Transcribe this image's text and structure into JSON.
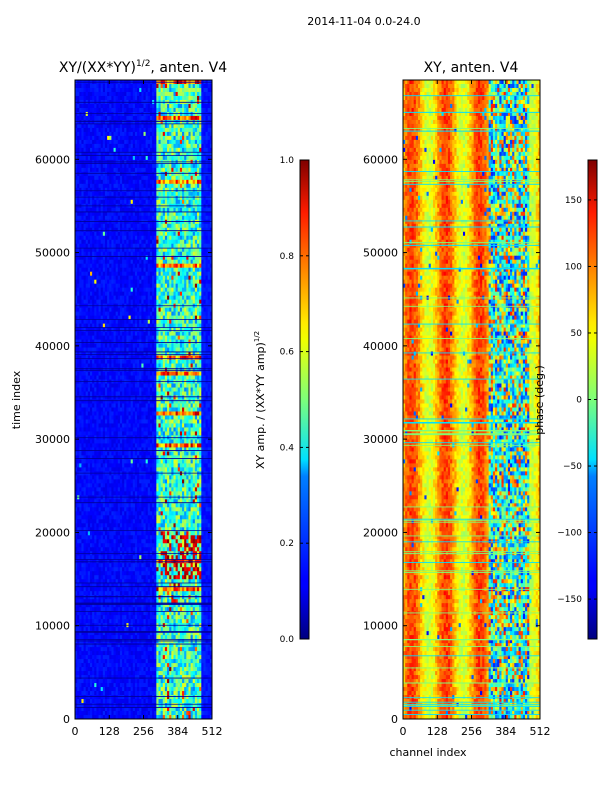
{
  "suptitle": "2014-11-04 0.0-24.0",
  "chart_data": [
    {
      "type": "heatmap",
      "title": "XY/(XX*YY)",
      "title_superscript": "1/2",
      "title_suffix": ", anten. V4",
      "xlabel": "",
      "ylabel": "time index",
      "xlim": [
        0,
        512
      ],
      "ylim": [
        0,
        68500
      ],
      "xticks": [
        0,
        128,
        256,
        384,
        512
      ],
      "yticks": [
        0,
        10000,
        20000,
        30000,
        40000,
        50000,
        60000
      ],
      "colorbar": {
        "label": "XY amp. / (XX*YY amp)",
        "label_superscript": "1/2",
        "range": [
          0.0,
          1.0
        ],
        "ticks": [
          "0.0",
          "0.2",
          "0.4",
          "0.6",
          "0.8",
          "1.0"
        ],
        "colormap": "jet"
      }
    },
    {
      "type": "heatmap",
      "title": "XY, anten. V4",
      "xlabel": "channel index",
      "ylabel": "",
      "xlim": [
        0,
        512
      ],
      "ylim": [
        0,
        68500
      ],
      "xticks": [
        0,
        128,
        256,
        384,
        512
      ],
      "yticks": [
        0,
        10000,
        20000,
        30000,
        40000,
        50000,
        60000
      ],
      "colorbar": {
        "label": "phase (deg.)",
        "range": [
          -180,
          180
        ],
        "ticks": [
          "−150",
          "−100",
          "−50",
          "0",
          "50",
          "100",
          "150"
        ],
        "tick_values": [
          -150,
          -100,
          -50,
          0,
          50,
          100,
          150
        ],
        "colormap": "jet"
      }
    }
  ]
}
